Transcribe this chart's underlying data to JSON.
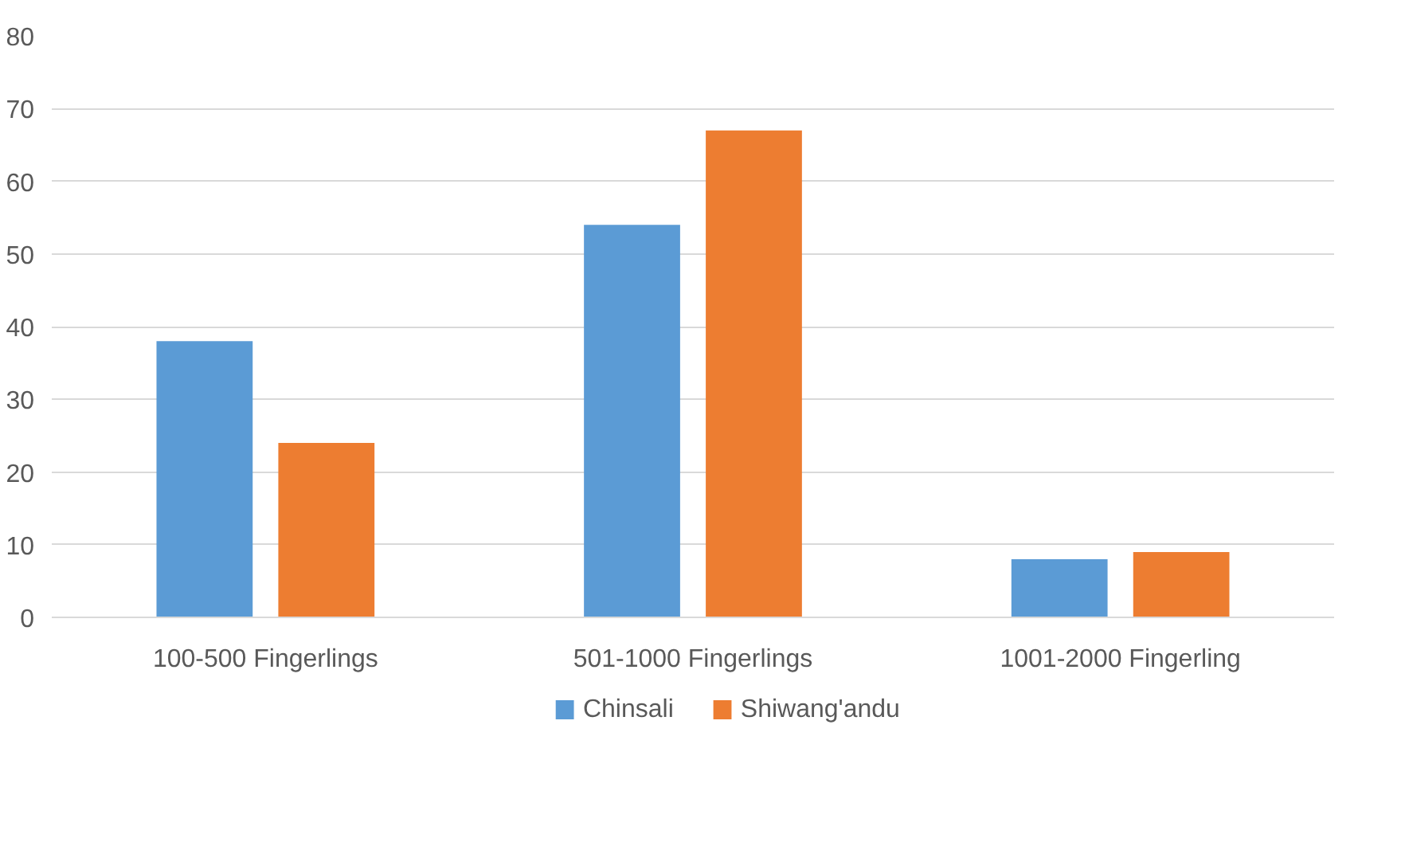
{
  "chart_data": {
    "type": "bar",
    "categories": [
      "100-500 Fingerlings",
      "501-1000 Fingerlings",
      "1001-2000 Fingerling"
    ],
    "series": [
      {
        "name": "Chinsali",
        "color": "#5b9bd5",
        "values": [
          38,
          54,
          8
        ]
      },
      {
        "name": "Shiwang'andu",
        "color": "#ed7d31",
        "values": [
          24,
          67,
          9
        ]
      }
    ],
    "ylim": [
      0,
      80
    ],
    "yticks": [
      0,
      10,
      20,
      30,
      40,
      50,
      60,
      70,
      80
    ],
    "grid": "y",
    "legend": "bottom"
  }
}
